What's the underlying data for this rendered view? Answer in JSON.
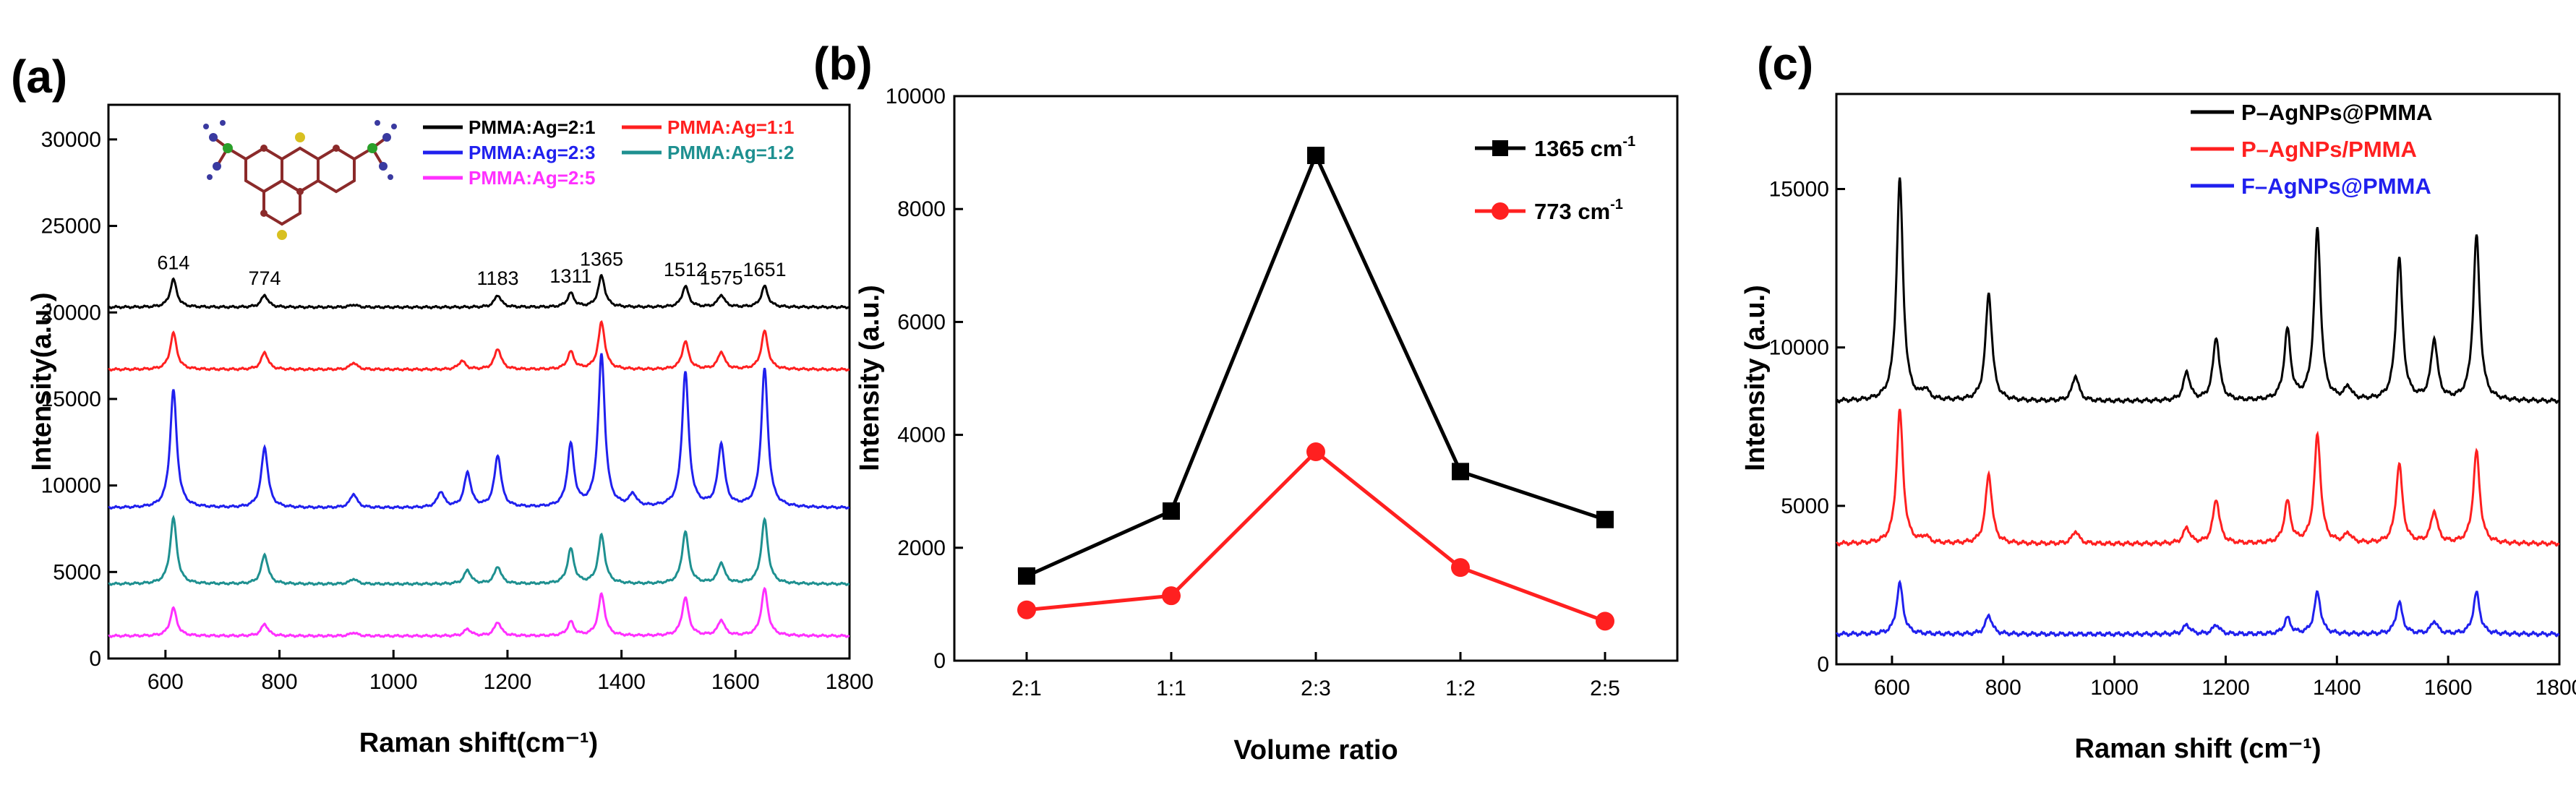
{
  "colors": {
    "black": "#000000",
    "red": "#ff2020",
    "blue": "#2020ee",
    "teal": "#1e9090",
    "magenta": "#ff30ff"
  },
  "icons": {
    "molecule": "molecule-structure-icon"
  },
  "chart_data": [
    {
      "panel": "(a)",
      "type": "line",
      "xlabel": "Raman shift(cm⁻¹)",
      "ylabel": "Intensity(a.u.)",
      "xlim": [
        500,
        1800
      ],
      "ylim": [
        0,
        32000
      ],
      "xticks": [
        600,
        800,
        1000,
        1200,
        1400,
        1600,
        1800
      ],
      "yticks": [
        0,
        5000,
        10000,
        15000,
        20000,
        25000,
        30000
      ],
      "grid": false,
      "legend": "top-right",
      "peak_labels": [
        {
          "text": "614",
          "x": 614
        },
        {
          "text": "774",
          "x": 774
        },
        {
          "text": "1183",
          "x": 1183
        },
        {
          "text": "1311",
          "x": 1311
        },
        {
          "text": "1365",
          "x": 1365
        },
        {
          "text": "1512",
          "x": 1512
        },
        {
          "text": "1575",
          "x": 1575
        },
        {
          "text": "1651",
          "x": 1651
        }
      ],
      "series": [
        {
          "name": "PMMA:Ag=2:1",
          "color": "#000000",
          "baseline": 20300,
          "peaks": [
            [
              614,
              1600
            ],
            [
              774,
              700
            ],
            [
              930,
              150
            ],
            [
              1183,
              700
            ],
            [
              1311,
              800
            ],
            [
              1365,
              1800
            ],
            [
              1512,
              1200
            ],
            [
              1575,
              700
            ],
            [
              1651,
              1200
            ]
          ]
        },
        {
          "name": "PMMA:Ag=1:1",
          "color": "#ff2020",
          "baseline": 16700,
          "peaks": [
            [
              614,
              2100
            ],
            [
              774,
              1000
            ],
            [
              930,
              400
            ],
            [
              1120,
              500
            ],
            [
              1183,
              1200
            ],
            [
              1311,
              1000
            ],
            [
              1365,
              2700
            ],
            [
              1512,
              1600
            ],
            [
              1575,
              1000
            ],
            [
              1651,
              2200
            ]
          ]
        },
        {
          "name": "PMMA:Ag=2:3",
          "color": "#2020ee",
          "baseline": 8700,
          "peaks": [
            [
              614,
              6800
            ],
            [
              774,
              3500
            ],
            [
              930,
              800
            ],
            [
              1083,
              900
            ],
            [
              1130,
              2000
            ],
            [
              1183,
              3000
            ],
            [
              1311,
              3600
            ],
            [
              1365,
              8800
            ],
            [
              1420,
              700
            ],
            [
              1512,
              7800
            ],
            [
              1575,
              3600
            ],
            [
              1651,
              8000
            ]
          ]
        },
        {
          "name": "PMMA:Ag=1:2",
          "color": "#1e9090",
          "baseline": 4300,
          "peaks": [
            [
              614,
              3800
            ],
            [
              774,
              1700
            ],
            [
              930,
              300
            ],
            [
              1130,
              800
            ],
            [
              1183,
              1000
            ],
            [
              1311,
              2000
            ],
            [
              1365,
              2800
            ],
            [
              1512,
              3000
            ],
            [
              1575,
              1200
            ],
            [
              1651,
              3700
            ]
          ]
        },
        {
          "name": "PMMA:Ag=2:5",
          "color": "#ff30ff",
          "baseline": 1300,
          "peaks": [
            [
              614,
              1600
            ],
            [
              774,
              700
            ],
            [
              930,
              200
            ],
            [
              1130,
              400
            ],
            [
              1183,
              800
            ],
            [
              1311,
              800
            ],
            [
              1365,
              2400
            ],
            [
              1512,
              2200
            ],
            [
              1575,
              900
            ],
            [
              1651,
              2700
            ]
          ]
        }
      ]
    },
    {
      "panel": "(b)",
      "type": "line",
      "xlabel": "Volume ratio",
      "ylabel": "Intensity (a.u.)",
      "categories": [
        "2:1",
        "1:1",
        "2:3",
        "1:2",
        "2:5"
      ],
      "ylim": [
        0,
        10000
      ],
      "yticks": [
        0,
        2000,
        4000,
        6000,
        8000,
        10000
      ],
      "grid": false,
      "legend": "top-right",
      "series": [
        {
          "name": "1365 cm",
          "sup": "-1",
          "color": "#000000",
          "marker": "square",
          "values": [
            1500,
            2650,
            8950,
            3350,
            2500
          ]
        },
        {
          "name": "773 cm",
          "sup": "-1",
          "color": "#ff2020",
          "marker": "circle",
          "values": [
            900,
            1150,
            3700,
            1650,
            700
          ]
        }
      ]
    },
    {
      "panel": "(c)",
      "type": "line",
      "xlabel": "Raman shift (cm⁻¹)",
      "ylabel": "Intensity (a.u.)",
      "xlim": [
        500,
        1800
      ],
      "ylim": [
        0,
        18000
      ],
      "xticks": [
        600,
        800,
        1000,
        1200,
        1400,
        1600,
        1800
      ],
      "yticks": [
        0,
        5000,
        10000,
        15000
      ],
      "grid": false,
      "legend": "top-right",
      "series": [
        {
          "name": "P–AgNPs@PMMA",
          "color": "#000000",
          "baseline": 8300,
          "peaks": [
            [
              614,
              7000
            ],
            [
              660,
              300
            ],
            [
              774,
              3400
            ],
            [
              930,
              800
            ],
            [
              1130,
              900
            ],
            [
              1183,
              2000
            ],
            [
              1311,
              2200
            ],
            [
              1365,
              5400
            ],
            [
              1420,
              400
            ],
            [
              1512,
              4500
            ],
            [
              1575,
              1900
            ],
            [
              1651,
              5200
            ]
          ]
        },
        {
          "name": "P–AgNPs/PMMA",
          "color": "#ff2020",
          "baseline": 3800,
          "peaks": [
            [
              614,
              4200
            ],
            [
              660,
              200
            ],
            [
              774,
              2200
            ],
            [
              930,
              400
            ],
            [
              1130,
              500
            ],
            [
              1183,
              1400
            ],
            [
              1311,
              1300
            ],
            [
              1365,
              3400
            ],
            [
              1420,
              300
            ],
            [
              1512,
              2500
            ],
            [
              1575,
              1000
            ],
            [
              1651,
              2900
            ]
          ]
        },
        {
          "name": "F–AgNPs@PMMA",
          "color": "#2020ee",
          "baseline": 950,
          "peaks": [
            [
              614,
              1600
            ],
            [
              774,
              600
            ],
            [
              1130,
              300
            ],
            [
              1183,
              300
            ],
            [
              1311,
              500
            ],
            [
              1365,
              1300
            ],
            [
              1512,
              1000
            ],
            [
              1575,
              400
            ],
            [
              1651,
              1300
            ]
          ]
        }
      ]
    }
  ]
}
